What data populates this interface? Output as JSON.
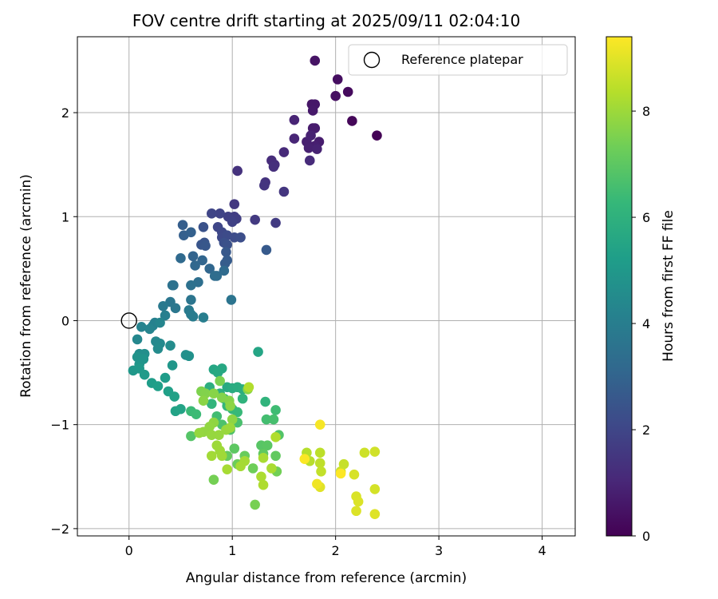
{
  "chart_data": {
    "type": "scatter",
    "title": "FOV centre drift starting at 2025/09/11 02:04:10",
    "xlabel": "Angular distance from reference (arcmin)",
    "ylabel": "Rotation from reference (arcmin)",
    "xlim": [
      -0.5,
      4.32
    ],
    "ylim": [
      -2.07,
      2.73
    ],
    "xticks": [
      0,
      1,
      2,
      3,
      4
    ],
    "yticks": [
      -2,
      -1,
      0,
      1,
      2
    ],
    "grid": true,
    "legend": {
      "placement": "top-right",
      "entries": [
        "Reference platepar"
      ]
    },
    "reference_point": {
      "x": 0,
      "y": 0,
      "label": "Reference platepar"
    },
    "colorbar": {
      "label": "Hours from first FF file",
      "range": [
        0,
        9.4
      ],
      "ticks": [
        0,
        2,
        4,
        6,
        8
      ],
      "colormap": "viridis",
      "colormap_stops": [
        "#440154",
        "#482878",
        "#3e4989",
        "#31688e",
        "#26828e",
        "#1f9e89",
        "#35b779",
        "#6ece58",
        "#b5de2b",
        "#fde725"
      ]
    },
    "points": [
      {
        "x": 2.4,
        "y": 1.78,
        "t": 0.05
      },
      {
        "x": 2.16,
        "y": 1.92,
        "t": 0.15
      },
      {
        "x": 2.12,
        "y": 2.2,
        "t": 0.25
      },
      {
        "x": 2.02,
        "y": 2.32,
        "t": 0.35
      },
      {
        "x": 2.0,
        "y": 2.16,
        "t": 0.4
      },
      {
        "x": 1.8,
        "y": 2.5,
        "t": 0.5
      },
      {
        "x": 1.77,
        "y": 2.08,
        "t": 0.55
      },
      {
        "x": 1.8,
        "y": 2.08,
        "t": 0.6
      },
      {
        "x": 1.78,
        "y": 2.02,
        "t": 0.65
      },
      {
        "x": 1.78,
        "y": 1.85,
        "t": 0.7
      },
      {
        "x": 1.8,
        "y": 1.85,
        "t": 0.72
      },
      {
        "x": 1.84,
        "y": 1.72,
        "t": 0.75
      },
      {
        "x": 1.8,
        "y": 1.68,
        "t": 0.8
      },
      {
        "x": 1.72,
        "y": 1.72,
        "t": 0.82
      },
      {
        "x": 1.74,
        "y": 1.66,
        "t": 0.85
      },
      {
        "x": 1.76,
        "y": 1.78,
        "t": 0.88
      },
      {
        "x": 1.82,
        "y": 1.65,
        "t": 0.9
      },
      {
        "x": 1.6,
        "y": 1.93,
        "t": 0.95
      },
      {
        "x": 1.6,
        "y": 1.75,
        "t": 1.0
      },
      {
        "x": 1.5,
        "y": 1.62,
        "t": 1.1
      },
      {
        "x": 1.75,
        "y": 1.54,
        "t": 1.15
      },
      {
        "x": 1.38,
        "y": 1.54,
        "t": 1.2
      },
      {
        "x": 1.41,
        "y": 1.5,
        "t": 1.25
      },
      {
        "x": 1.4,
        "y": 1.48,
        "t": 1.3
      },
      {
        "x": 1.05,
        "y": 1.44,
        "t": 1.35
      },
      {
        "x": 1.32,
        "y": 1.33,
        "t": 1.4
      },
      {
        "x": 1.31,
        "y": 1.3,
        "t": 1.45
      },
      {
        "x": 1.5,
        "y": 1.24,
        "t": 1.5
      },
      {
        "x": 1.02,
        "y": 1.12,
        "t": 1.55
      },
      {
        "x": 1.22,
        "y": 0.97,
        "t": 1.6
      },
      {
        "x": 1.42,
        "y": 0.94,
        "t": 1.65
      },
      {
        "x": 1.02,
        "y": 1.0,
        "t": 1.7
      },
      {
        "x": 1.04,
        "y": 0.98,
        "t": 1.75
      },
      {
        "x": 0.96,
        "y": 1.0,
        "t": 1.8
      },
      {
        "x": 1.0,
        "y": 0.95,
        "t": 1.85
      },
      {
        "x": 0.88,
        "y": 1.03,
        "t": 1.9
      },
      {
        "x": 0.8,
        "y": 1.03,
        "t": 1.95
      },
      {
        "x": 0.86,
        "y": 0.9,
        "t": 2.0
      },
      {
        "x": 0.9,
        "y": 0.85,
        "t": 2.05
      },
      {
        "x": 0.9,
        "y": 0.8,
        "t": 2.1
      },
      {
        "x": 0.95,
        "y": 0.82,
        "t": 2.15
      },
      {
        "x": 1.02,
        "y": 0.8,
        "t": 2.2
      },
      {
        "x": 1.08,
        "y": 0.8,
        "t": 2.25
      },
      {
        "x": 0.92,
        "y": 0.75,
        "t": 2.3
      },
      {
        "x": 0.95,
        "y": 0.73,
        "t": 2.35
      },
      {
        "x": 0.72,
        "y": 0.9,
        "t": 2.4
      },
      {
        "x": 0.73,
        "y": 0.75,
        "t": 2.45
      },
      {
        "x": 0.7,
        "y": 0.73,
        "t": 2.5
      },
      {
        "x": 0.74,
        "y": 0.72,
        "t": 2.55
      },
      {
        "x": 0.94,
        "y": 0.66,
        "t": 2.6
      },
      {
        "x": 1.33,
        "y": 0.68,
        "t": 2.65
      },
      {
        "x": 0.95,
        "y": 0.58,
        "t": 2.7
      },
      {
        "x": 0.93,
        "y": 0.55,
        "t": 2.75
      },
      {
        "x": 0.52,
        "y": 0.92,
        "t": 2.8
      },
      {
        "x": 0.53,
        "y": 0.82,
        "t": 2.85
      },
      {
        "x": 0.6,
        "y": 0.85,
        "t": 2.9
      },
      {
        "x": 0.62,
        "y": 0.62,
        "t": 3.0
      },
      {
        "x": 0.71,
        "y": 0.58,
        "t": 3.05
      },
      {
        "x": 0.78,
        "y": 0.5,
        "t": 3.1
      },
      {
        "x": 0.64,
        "y": 0.53,
        "t": 3.15
      },
      {
        "x": 0.5,
        "y": 0.6,
        "t": 3.2
      },
      {
        "x": 0.92,
        "y": 0.48,
        "t": 3.25
      },
      {
        "x": 0.85,
        "y": 0.43,
        "t": 3.3
      },
      {
        "x": 0.83,
        "y": 0.43,
        "t": 3.35
      },
      {
        "x": 0.67,
        "y": 0.37,
        "t": 3.4
      },
      {
        "x": 0.43,
        "y": 0.34,
        "t": 3.45
      },
      {
        "x": 0.6,
        "y": 0.34,
        "t": 3.5
      },
      {
        "x": 0.42,
        "y": 0.34,
        "t": 3.55
      },
      {
        "x": 0.99,
        "y": 0.2,
        "t": 3.6
      },
      {
        "x": 0.6,
        "y": 0.2,
        "t": 3.65
      },
      {
        "x": 0.4,
        "y": 0.18,
        "t": 3.7
      },
      {
        "x": 0.45,
        "y": 0.12,
        "t": 3.75
      },
      {
        "x": 0.33,
        "y": 0.14,
        "t": 3.8
      },
      {
        "x": 0.58,
        "y": 0.1,
        "t": 3.85
      },
      {
        "x": 0.6,
        "y": 0.06,
        "t": 3.9
      },
      {
        "x": 0.62,
        "y": 0.04,
        "t": 3.95
      },
      {
        "x": 0.72,
        "y": 0.03,
        "t": 4.0
      },
      {
        "x": 0.35,
        "y": 0.05,
        "t": 4.05
      },
      {
        "x": 0.25,
        "y": -0.02,
        "t": 4.1
      },
      {
        "x": 0.23,
        "y": -0.05,
        "t": 4.15
      },
      {
        "x": 0.12,
        "y": -0.06,
        "t": 4.2
      },
      {
        "x": 0.2,
        "y": -0.08,
        "t": 4.25
      },
      {
        "x": 0.3,
        "y": -0.02,
        "t": 4.3
      },
      {
        "x": 0.08,
        "y": -0.18,
        "t": 4.35
      },
      {
        "x": 0.26,
        "y": -0.2,
        "t": 4.4
      },
      {
        "x": 0.3,
        "y": -0.22,
        "t": 4.45
      },
      {
        "x": 0.28,
        "y": -0.27,
        "t": 4.5
      },
      {
        "x": 0.4,
        "y": -0.24,
        "t": 4.55
      },
      {
        "x": 0.1,
        "y": -0.32,
        "t": 4.6
      },
      {
        "x": 0.15,
        "y": -0.32,
        "t": 4.65
      },
      {
        "x": 0.55,
        "y": -0.33,
        "t": 4.7
      },
      {
        "x": 0.58,
        "y": -0.34,
        "t": 4.75
      },
      {
        "x": 0.08,
        "y": -0.35,
        "t": 4.8
      },
      {
        "x": 0.14,
        "y": -0.37,
        "t": 4.85
      },
      {
        "x": 0.1,
        "y": -0.42,
        "t": 4.9
      },
      {
        "x": 0.42,
        "y": -0.43,
        "t": 4.95
      },
      {
        "x": 0.04,
        "y": -0.48,
        "t": 5.0
      },
      {
        "x": 0.1,
        "y": -0.46,
        "t": 5.05
      },
      {
        "x": 0.15,
        "y": -0.52,
        "t": 5.1
      },
      {
        "x": 0.35,
        "y": -0.55,
        "t": 5.15
      },
      {
        "x": 0.22,
        "y": -0.6,
        "t": 5.2
      },
      {
        "x": 0.28,
        "y": -0.63,
        "t": 5.25
      },
      {
        "x": 0.38,
        "y": -0.68,
        "t": 5.3
      },
      {
        "x": 0.44,
        "y": -0.73,
        "t": 5.35
      },
      {
        "x": 0.45,
        "y": -0.87,
        "t": 5.4
      },
      {
        "x": 0.5,
        "y": -0.85,
        "t": 5.45
      },
      {
        "x": 1.25,
        "y": -0.3,
        "t": 5.5
      },
      {
        "x": 0.82,
        "y": -0.47,
        "t": 5.55
      },
      {
        "x": 0.9,
        "y": -0.46,
        "t": 5.6
      },
      {
        "x": 0.86,
        "y": -0.5,
        "t": 5.65
      },
      {
        "x": 0.95,
        "y": -0.64,
        "t": 5.7
      },
      {
        "x": 1.0,
        "y": -0.65,
        "t": 5.75
      },
      {
        "x": 1.05,
        "y": -0.64,
        "t": 5.8
      },
      {
        "x": 1.1,
        "y": -0.66,
        "t": 5.85
      },
      {
        "x": 0.78,
        "y": -0.64,
        "t": 5.9
      },
      {
        "x": 0.88,
        "y": -0.7,
        "t": 5.95
      },
      {
        "x": 0.92,
        "y": -0.75,
        "t": 6.0
      },
      {
        "x": 1.1,
        "y": -0.75,
        "t": 6.05
      },
      {
        "x": 1.32,
        "y": -0.78,
        "t": 6.1
      },
      {
        "x": 0.8,
        "y": -0.8,
        "t": 6.15
      },
      {
        "x": 0.95,
        "y": -0.82,
        "t": 6.2
      },
      {
        "x": 1.0,
        "y": -0.85,
        "t": 6.25
      },
      {
        "x": 1.05,
        "y": -0.88,
        "t": 6.3
      },
      {
        "x": 0.6,
        "y": -0.87,
        "t": 6.35
      },
      {
        "x": 0.65,
        "y": -0.9,
        "t": 6.4
      },
      {
        "x": 1.42,
        "y": -0.86,
        "t": 6.45
      },
      {
        "x": 0.85,
        "y": -0.92,
        "t": 6.5
      },
      {
        "x": 1.33,
        "y": -0.95,
        "t": 6.55
      },
      {
        "x": 1.4,
        "y": -0.95,
        "t": 6.6
      },
      {
        "x": 1.05,
        "y": -0.98,
        "t": 6.65
      },
      {
        "x": 0.9,
        "y": -1.0,
        "t": 6.7
      },
      {
        "x": 0.98,
        "y": -1.05,
        "t": 6.75
      },
      {
        "x": 1.45,
        "y": -1.1,
        "t": 6.8
      },
      {
        "x": 0.6,
        "y": -1.11,
        "t": 6.85
      },
      {
        "x": 1.28,
        "y": -1.2,
        "t": 6.9
      },
      {
        "x": 1.34,
        "y": -1.2,
        "t": 6.95
      },
      {
        "x": 1.02,
        "y": -1.23,
        "t": 7.0
      },
      {
        "x": 1.3,
        "y": -1.28,
        "t": 7.05
      },
      {
        "x": 1.42,
        "y": -1.3,
        "t": 7.1
      },
      {
        "x": 0.95,
        "y": -1.3,
        "t": 7.15
      },
      {
        "x": 1.12,
        "y": -1.3,
        "t": 7.2
      },
      {
        "x": 1.05,
        "y": -1.38,
        "t": 7.25
      },
      {
        "x": 1.2,
        "y": -1.42,
        "t": 7.3
      },
      {
        "x": 1.43,
        "y": -1.45,
        "t": 7.35
      },
      {
        "x": 0.82,
        "y": -1.53,
        "t": 7.4
      },
      {
        "x": 1.22,
        "y": -1.77,
        "t": 7.45
      },
      {
        "x": 0.88,
        "y": -0.58,
        "t": 7.5
      },
      {
        "x": 0.7,
        "y": -0.68,
        "t": 7.55
      },
      {
        "x": 0.74,
        "y": -0.7,
        "t": 7.6
      },
      {
        "x": 0.9,
        "y": -0.74,
        "t": 7.62
      },
      {
        "x": 0.97,
        "y": -0.77,
        "t": 7.65
      },
      {
        "x": 0.82,
        "y": -0.7,
        "t": 7.68
      },
      {
        "x": 1.15,
        "y": -0.66,
        "t": 7.7
      },
      {
        "x": 0.72,
        "y": -0.77,
        "t": 7.72
      },
      {
        "x": 0.98,
        "y": -0.82,
        "t": 7.75
      },
      {
        "x": 1.0,
        "y": -0.95,
        "t": 7.78
      },
      {
        "x": 0.82,
        "y": -0.98,
        "t": 7.8
      },
      {
        "x": 0.78,
        "y": -1.02,
        "t": 7.82
      },
      {
        "x": 0.72,
        "y": -1.07,
        "t": 7.85
      },
      {
        "x": 0.68,
        "y": -1.08,
        "t": 7.88
      },
      {
        "x": 0.8,
        "y": -1.1,
        "t": 7.9
      },
      {
        "x": 0.87,
        "y": -1.1,
        "t": 7.92
      },
      {
        "x": 0.94,
        "y": -1.05,
        "t": 7.95
      },
      {
        "x": 0.98,
        "y": -1.03,
        "t": 7.98
      },
      {
        "x": 0.85,
        "y": -1.2,
        "t": 8.0
      },
      {
        "x": 0.88,
        "y": -1.25,
        "t": 8.02
      },
      {
        "x": 0.9,
        "y": -1.3,
        "t": 8.05
      },
      {
        "x": 0.8,
        "y": -1.3,
        "t": 8.08
      },
      {
        "x": 1.12,
        "y": -1.35,
        "t": 8.1
      },
      {
        "x": 1.08,
        "y": -1.4,
        "t": 8.12
      },
      {
        "x": 0.95,
        "y": -1.43,
        "t": 8.15
      },
      {
        "x": 1.3,
        "y": -1.32,
        "t": 8.18
      },
      {
        "x": 1.38,
        "y": -1.42,
        "t": 8.2
      },
      {
        "x": 1.28,
        "y": -1.5,
        "t": 8.22
      },
      {
        "x": 1.3,
        "y": -1.58,
        "t": 8.25
      },
      {
        "x": 1.42,
        "y": -1.12,
        "t": 8.28
      },
      {
        "x": 1.16,
        "y": -0.64,
        "t": 8.3
      },
      {
        "x": 1.72,
        "y": -1.27,
        "t": 8.35
      },
      {
        "x": 1.75,
        "y": -1.35,
        "t": 8.4
      },
      {
        "x": 1.85,
        "y": -1.27,
        "t": 8.45
      },
      {
        "x": 1.85,
        "y": -1.37,
        "t": 8.5
      },
      {
        "x": 1.86,
        "y": -1.45,
        "t": 8.55
      },
      {
        "x": 2.08,
        "y": -1.38,
        "t": 8.6
      },
      {
        "x": 2.05,
        "y": -1.45,
        "t": 8.65
      },
      {
        "x": 2.28,
        "y": -1.27,
        "t": 8.7
      },
      {
        "x": 2.38,
        "y": -1.26,
        "t": 8.75
      },
      {
        "x": 2.38,
        "y": -1.62,
        "t": 8.8
      },
      {
        "x": 2.18,
        "y": -1.48,
        "t": 8.85
      },
      {
        "x": 2.2,
        "y": -1.69,
        "t": 8.88
      },
      {
        "x": 2.22,
        "y": -1.74,
        "t": 8.9
      },
      {
        "x": 2.2,
        "y": -1.83,
        "t": 8.92
      },
      {
        "x": 2.38,
        "y": -1.86,
        "t": 8.95
      },
      {
        "x": 1.85,
        "y": -1.6,
        "t": 8.98
      },
      {
        "x": 1.82,
        "y": -1.57,
        "t": 9.2
      },
      {
        "x": 1.85,
        "y": -1.0,
        "t": 9.3
      },
      {
        "x": 1.7,
        "y": -1.33,
        "t": 9.35
      },
      {
        "x": 2.05,
        "y": -1.47,
        "t": 9.38
      }
    ]
  }
}
